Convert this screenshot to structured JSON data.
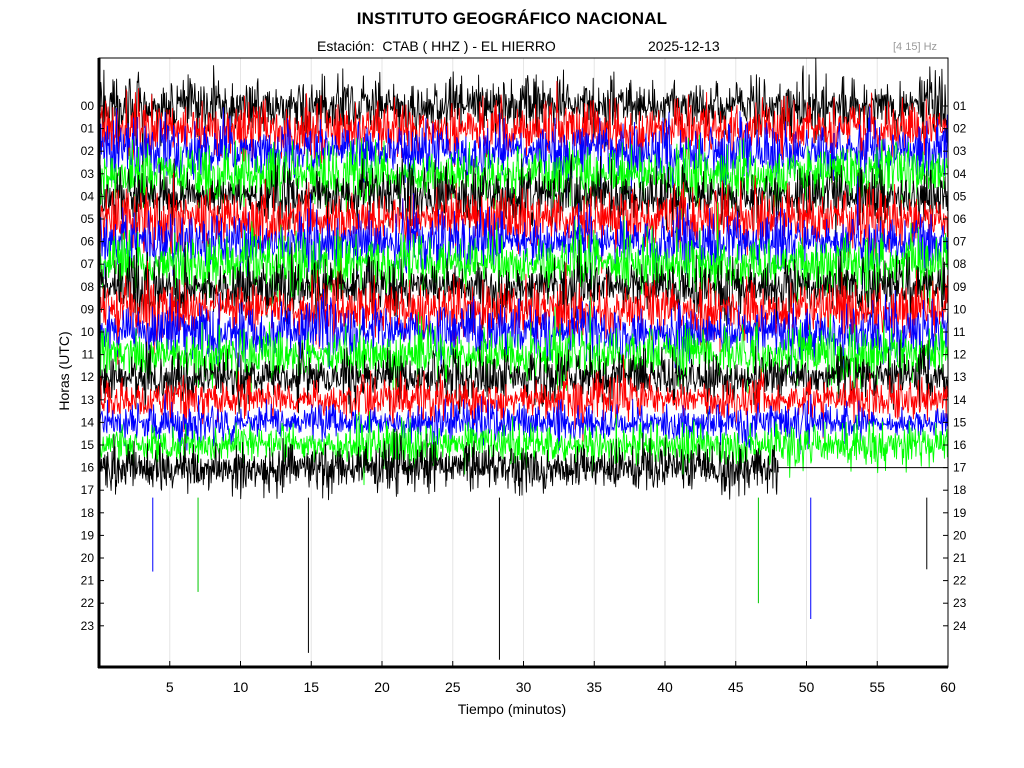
{
  "chart_data": {
    "type": "line",
    "title": "INSTITUTO GEOGRÁFICO NACIONAL",
    "station_label": "Estación:  CTAB ( HHZ ) - EL HIERRO",
    "date": "2025-12-13",
    "filter_label": "[4 15] Hz",
    "xlabel": "Tiempo (minutos)",
    "ylabel": "Horas (UTC)",
    "xlim": [
      0,
      60
    ],
    "x_ticks": [
      "5",
      "10",
      "15",
      "20",
      "25",
      "30",
      "35",
      "40",
      "45",
      "50",
      "55",
      "60"
    ],
    "y_ticks_left": [
      "00",
      "01",
      "02",
      "03",
      "04",
      "05",
      "06",
      "07",
      "08",
      "09",
      "10",
      "11",
      "12",
      "13",
      "14",
      "15",
      "16",
      "17",
      "18",
      "19",
      "20",
      "21",
      "22",
      "23"
    ],
    "y_ticks_right": [
      "01",
      "02",
      "03",
      "04",
      "05",
      "06",
      "07",
      "08",
      "09",
      "10",
      "11",
      "12",
      "13",
      "14",
      "15",
      "16",
      "17",
      "18",
      "19",
      "20",
      "21",
      "22",
      "23",
      "24"
    ],
    "trace_colors": [
      "#000000",
      "#ff0000",
      "#0000ff",
      "#00ff00"
    ],
    "last_trace_hour": 16,
    "last_trace_minute": 48,
    "grid": "vertical"
  }
}
